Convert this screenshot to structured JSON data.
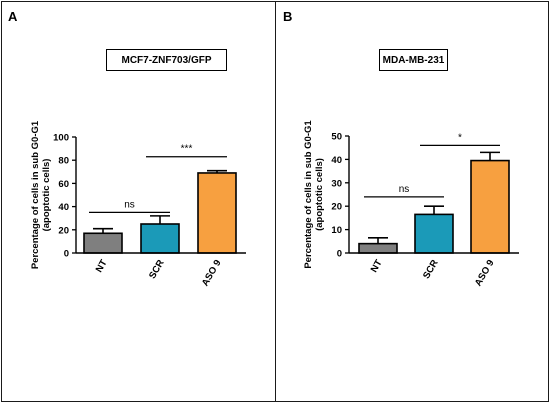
{
  "panels": [
    {
      "letter": "A",
      "box_title": "MCF7-ZNF703/GFP"
    },
    {
      "letter": "B",
      "box_title": "MDA-MB-231"
    }
  ],
  "chart_data": [
    {
      "type": "bar",
      "title": "MCF7-ZNF703/GFP",
      "ylabel_line1": "Percentage of cells in sub G0-G1",
      "ylabel_line2": "(apoptotic cells)",
      "ylim": [
        0,
        100
      ],
      "yticks": [
        0,
        20,
        40,
        60,
        80,
        100
      ],
      "categories": [
        "NT",
        "SCR",
        "ASO 9"
      ],
      "values": [
        17,
        25,
        69
      ],
      "errors": [
        4,
        7,
        2
      ],
      "colors": [
        "#7f7f7f",
        "#1b9ab8",
        "#f7a040"
      ],
      "comparisons": [
        {
          "from": 0,
          "to": 1,
          "label": "ns",
          "y": 35
        },
        {
          "from": 1,
          "to": 2,
          "label": "***",
          "y": 83
        }
      ]
    },
    {
      "type": "bar",
      "title": "MDA-MB-231",
      "ylabel_line1": "Percentage of cells in sub G0-G1",
      "ylabel_line2": "(apoptotic cells)",
      "ylim": [
        0,
        50
      ],
      "yticks": [
        0,
        10,
        20,
        30,
        40,
        50
      ],
      "categories": [
        "NT",
        "SCR",
        "ASO 9"
      ],
      "values": [
        4,
        16.5,
        39.5
      ],
      "errors": [
        2.5,
        3.5,
        3.5
      ],
      "colors": [
        "#7f7f7f",
        "#1b9ab8",
        "#f7a040"
      ],
      "comparisons": [
        {
          "from": 0,
          "to": 1,
          "label": "ns",
          "y": 24
        },
        {
          "from": 1,
          "to": 2,
          "label": "*",
          "y": 46
        }
      ]
    }
  ]
}
